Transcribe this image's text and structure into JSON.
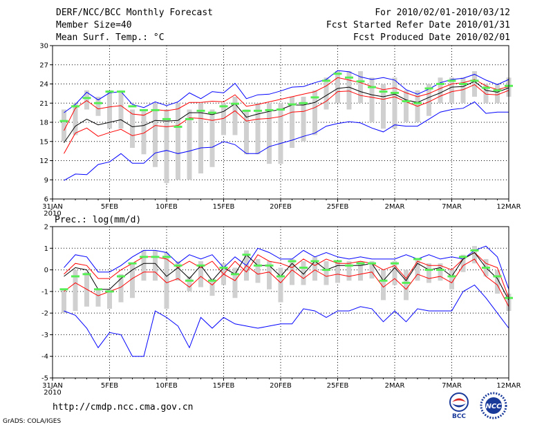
{
  "header": {
    "title": "DERF/NCC/BCC Monthly Forecast",
    "member_size": "Member Size=40",
    "variable": "Mean Surf. Temp.: °C",
    "period": "For 2010/02/01-2010/03/12",
    "started": "Fcst Started Refer Date 2010/01/31",
    "produced": "Fcst Produced Date 2010/02/01"
  },
  "footer": {
    "url": "http://cmdp.ncc.cma.gov.cn",
    "grads": "GrADS: COLA/IGES",
    "logo_bcc": "BCC",
    "logo_ncc": "NCC"
  },
  "colors": {
    "envelope": "#0000ff",
    "spread": "#ff0000",
    "mean": "#000000",
    "obs": "#55ee55",
    "bar": "#d0d0d0"
  },
  "chart_data": [
    {
      "type": "line",
      "title": "Mean Surf. Temp.: °C",
      "ylim": [
        6,
        30
      ],
      "yticks": [
        6,
        9,
        12,
        15,
        18,
        21,
        24,
        27,
        30
      ],
      "xticks": [
        {
          "day": 0,
          "label": "31JAN"
        },
        {
          "day": 5,
          "label": "5FEB"
        },
        {
          "day": 10,
          "label": "10FEB"
        },
        {
          "day": 15,
          "label": "15FEB"
        },
        {
          "day": 20,
          "label": "20FEB"
        },
        {
          "day": 25,
          "label": "25FEB"
        },
        {
          "day": 30,
          "label": "2MAR"
        },
        {
          "day": 35,
          "label": "7MAR"
        },
        {
          "day": 40,
          "label": "12MAR"
        }
      ],
      "year_label": "2010",
      "x": [
        1,
        2,
        3,
        4,
        5,
        6,
        7,
        8,
        9,
        10,
        11,
        12,
        13,
        14,
        15,
        16,
        17,
        18,
        19,
        20,
        21,
        22,
        23,
        24,
        25,
        26,
        27,
        28,
        29,
        30,
        31,
        32,
        33,
        34,
        35,
        36,
        37,
        38,
        39,
        40
      ],
      "series": [
        {
          "name": "max",
          "values": [
            19.5,
            20.8,
            22.7,
            21.5,
            22.6,
            22.8,
            20.8,
            20.3,
            21.2,
            20.6,
            21.2,
            22.6,
            21.7,
            22.8,
            22.6,
            24.1,
            21.7,
            22.3,
            22.4,
            22.9,
            23.5,
            23.6,
            24.2,
            24.7,
            26.1,
            25.9,
            25.1,
            24.7,
            25.0,
            24.6,
            23.1,
            22.4,
            23.2,
            24.2,
            24.7,
            24.9,
            25.5,
            24.6,
            23.9,
            24.7
          ]
        },
        {
          "name": "mean_plus",
          "values": [
            16.7,
            20.2,
            21.4,
            20.1,
            20.4,
            20.6,
            19.3,
            19.1,
            20.0,
            19.8,
            20.1,
            21.1,
            21.1,
            21.3,
            21.2,
            22.3,
            20.5,
            20.8,
            21.2,
            21.6,
            22.0,
            22.4,
            22.8,
            23.7,
            25.0,
            24.6,
            24.2,
            23.6,
            23.1,
            23.4,
            22.6,
            22.0,
            22.5,
            23.3,
            24.0,
            24.2,
            24.7,
            23.7,
            23.1,
            23.6
          ]
        },
        {
          "name": "mean",
          "values": [
            14.8,
            17.4,
            18.5,
            17.6,
            18.0,
            18.4,
            17.3,
            17.5,
            18.3,
            18.2,
            18.3,
            19.5,
            19.5,
            19.2,
            19.7,
            20.9,
            18.8,
            19.3,
            19.7,
            20.0,
            20.7,
            20.7,
            21.1,
            22.2,
            23.3,
            23.5,
            22.8,
            22.3,
            22.0,
            22.4,
            21.5,
            21.1,
            21.9,
            22.6,
            23.5,
            23.6,
            24.4,
            23.0,
            22.7,
            23.4
          ]
        },
        {
          "name": "mean_minus",
          "values": [
            13.1,
            16.3,
            17.1,
            15.8,
            16.4,
            16.9,
            15.9,
            16.3,
            17.5,
            17.3,
            17.5,
            18.7,
            18.6,
            18.3,
            18.6,
            19.8,
            18.2,
            18.5,
            18.6,
            18.9,
            19.6,
            19.7,
            20.3,
            21.3,
            22.8,
            22.9,
            22.2,
            21.9,
            21.6,
            22.0,
            21.2,
            20.5,
            21.2,
            22.1,
            22.8,
            23.1,
            23.9,
            22.4,
            22.3,
            23.0
          ]
        },
        {
          "name": "min",
          "values": [
            8.9,
            9.9,
            9.8,
            11.4,
            11.8,
            13.1,
            11.6,
            11.6,
            13.2,
            13.6,
            13.1,
            13.5,
            14.0,
            14.1,
            15.0,
            14.5,
            13.1,
            13.1,
            14.2,
            14.7,
            15.2,
            15.8,
            16.3,
            17.4,
            17.8,
            18.1,
            17.9,
            17.1,
            16.5,
            17.6,
            17.4,
            17.4,
            18.5,
            19.6,
            20.0,
            20.2,
            21.2,
            19.4,
            19.6,
            19.6
          ]
        },
        {
          "name": "obs_green",
          "values": [
            18.2,
            20.5,
            21.8,
            21.0,
            22.8,
            22.8,
            20.5,
            19.9,
            19.9,
            18.5,
            17.3,
            18.5,
            19.8,
            19.5,
            20.5,
            20.9,
            19.8,
            19.8,
            19.9,
            20.0,
            20.8,
            21.0,
            21.9,
            24.5,
            25.6,
            25.0,
            24.4,
            23.5,
            22.8,
            22.6,
            21.3,
            21.0,
            23.3,
            24.0,
            24.5,
            24.0,
            24.5,
            23.4,
            23.0,
            23.7
          ]
        }
      ],
      "bars": [
        [
          15,
          20
        ],
        [
          16,
          21
        ],
        [
          20,
          23
        ],
        [
          19,
          22
        ],
        [
          17,
          23
        ],
        [
          17,
          23
        ],
        [
          14,
          20
        ],
        [
          13,
          20
        ],
        [
          11,
          21
        ],
        [
          8.5,
          20
        ],
        [
          9,
          21
        ],
        [
          9,
          20
        ],
        [
          10,
          21
        ],
        [
          11,
          20
        ],
        [
          16,
          21
        ],
        [
          16,
          22
        ],
        [
          13,
          20
        ],
        [
          13,
          21
        ],
        [
          11.5,
          21
        ],
        [
          11.5,
          21
        ],
        [
          14,
          22
        ],
        [
          15,
          22
        ],
        [
          16,
          23
        ],
        [
          20,
          25
        ],
        [
          21,
          26
        ],
        [
          20,
          26
        ],
        [
          21,
          26
        ],
        [
          18,
          25
        ],
        [
          17,
          24
        ],
        [
          17,
          25
        ],
        [
          18,
          23
        ],
        [
          18,
          23
        ],
        [
          19,
          24
        ],
        [
          21,
          25
        ],
        [
          21,
          25
        ],
        [
          21,
          25
        ],
        [
          22,
          26
        ],
        [
          21,
          24
        ],
        [
          21,
          24
        ],
        [
          22,
          25
        ]
      ]
    },
    {
      "type": "line",
      "title": "Prec.: log(mm/d)",
      "ylim": [
        -5,
        2
      ],
      "yticks": [
        -5,
        -4,
        -3,
        -2,
        -1,
        0,
        1,
        2
      ],
      "xticks": [
        {
          "day": 0,
          "label": "31JAN"
        },
        {
          "day": 5,
          "label": "5FEB"
        },
        {
          "day": 10,
          "label": "10FEB"
        },
        {
          "day": 15,
          "label": "15FEB"
        },
        {
          "day": 20,
          "label": "20FEB"
        },
        {
          "day": 25,
          "label": "25FEB"
        },
        {
          "day": 30,
          "label": "2MAR"
        },
        {
          "day": 35,
          "label": "7MAR"
        },
        {
          "day": 40,
          "label": "12MAR"
        }
      ],
      "year_label": "2010",
      "x": [
        1,
        2,
        3,
        4,
        5,
        6,
        7,
        8,
        9,
        10,
        11,
        12,
        13,
        14,
        15,
        16,
        17,
        18,
        19,
        20,
        21,
        22,
        23,
        24,
        25,
        26,
        27,
        28,
        29,
        30,
        31,
        32,
        33,
        34,
        35,
        36,
        37,
        38,
        39,
        40
      ],
      "series": [
        {
          "name": "max",
          "values": [
            0.1,
            0.7,
            0.6,
            -0.1,
            -0.1,
            0.2,
            0.6,
            0.9,
            0.9,
            0.8,
            0.3,
            0.7,
            0.5,
            0.7,
            0.1,
            0.6,
            0.2,
            1.0,
            0.8,
            0.5,
            0.5,
            0.9,
            0.6,
            0.8,
            0.6,
            0.5,
            0.6,
            0.5,
            0.5,
            0.5,
            0.7,
            0.5,
            0.7,
            0.5,
            0.6,
            0.5,
            0.9,
            1.1,
            0.6,
            -0.9
          ]
        },
        {
          "name": "mean_plus",
          "values": [
            -0.2,
            0.3,
            0.2,
            -0.4,
            -0.4,
            0.0,
            0.3,
            0.6,
            0.6,
            0.5,
            0.1,
            0.4,
            0.1,
            0.4,
            -0.2,
            0.4,
            -0.1,
            0.7,
            0.4,
            0.3,
            0.1,
            0.5,
            0.2,
            0.5,
            0.3,
            0.3,
            0.4,
            0.3,
            0.0,
            0.2,
            -0.4,
            0.4,
            0.2,
            0.2,
            0.0,
            0.5,
            0.8,
            0.3,
            0.1,
            -1.3
          ]
        },
        {
          "name": "mean",
          "values": [
            -0.3,
            0.1,
            0.0,
            -0.9,
            -0.9,
            -0.4,
            0.0,
            0.3,
            0.3,
            -0.3,
            0.1,
            -0.4,
            0.2,
            -0.5,
            0.1,
            -0.2,
            0.7,
            0.2,
            0.2,
            -0.3,
            0.3,
            -0.2,
            0.4,
            0.0,
            0.2,
            0.2,
            0.2,
            0.3,
            -0.5,
            0.1,
            -0.5,
            0.3,
            0.0,
            0.1,
            -0.3,
            0.5,
            0.8,
            0.1,
            -0.4,
            -1.4
          ]
        },
        {
          "name": "mean_minus",
          "values": [
            -1.0,
            -0.6,
            -0.9,
            -1.2,
            -1.0,
            -0.8,
            -0.4,
            -0.1,
            -0.1,
            -0.6,
            -0.4,
            -0.8,
            -0.3,
            -0.7,
            -0.2,
            -0.5,
            0.2,
            -0.2,
            -0.1,
            -0.6,
            0.0,
            -0.4,
            0.0,
            -0.3,
            -0.2,
            -0.3,
            -0.2,
            -0.1,
            -0.8,
            -0.4,
            -0.9,
            -0.2,
            -0.4,
            -0.3,
            -0.6,
            0.2,
            0.5,
            -0.3,
            -0.7,
            -1.7
          ]
        },
        {
          "name": "min",
          "values": [
            -1.9,
            -2.1,
            -2.7,
            -3.6,
            -2.9,
            -3.0,
            -4.0,
            -4.0,
            -1.9,
            -2.2,
            -2.6,
            -3.6,
            -2.2,
            -2.7,
            -2.2,
            -2.5,
            -2.6,
            -2.7,
            -2.6,
            -2.5,
            -2.5,
            -1.8,
            -1.9,
            -2.2,
            -1.9,
            -1.9,
            -1.7,
            -1.8,
            -2.4,
            -1.9,
            -2.4,
            -1.8,
            -1.9,
            -1.9,
            -1.9,
            -1.0,
            -0.7,
            -1.3,
            -2.0,
            -2.7
          ]
        },
        {
          "name": "obs_green",
          "values": [
            -0.9,
            -0.3,
            -0.2,
            -0.9,
            -1.0,
            -0.3,
            0.3,
            0.6,
            0.6,
            0.6,
            0.2,
            -0.5,
            0.2,
            -0.5,
            0.1,
            -0.2,
            0.7,
            0.2,
            0.2,
            -0.3,
            0.4,
            0.1,
            0.4,
            0.0,
            0.4,
            0.2,
            0.3,
            0.3,
            -0.5,
            0.3,
            -0.6,
            0.5,
            0.0,
            0.0,
            -0.3,
            0.6,
            0.9,
            0.1,
            -0.3,
            -1.3
          ]
        }
      ],
      "bars": [
        [
          -2.0,
          -0.9
        ],
        [
          -1.9,
          0.0
        ],
        [
          -1.7,
          -0.1
        ],
        [
          -1.7,
          -0.9
        ],
        [
          -1.8,
          -0.9
        ],
        [
          -1.5,
          -0.2
        ],
        [
          -1.3,
          0.3
        ],
        [
          -0.5,
          0.9
        ],
        [
          -0.5,
          0.9
        ],
        [
          -1.8,
          0.8
        ],
        [
          -0.5,
          0.4
        ],
        [
          -1.0,
          -0.3
        ],
        [
          -0.8,
          0.4
        ],
        [
          -1.2,
          -0.4
        ],
        [
          -0.7,
          0.3
        ],
        [
          -1.3,
          0.1
        ],
        [
          -0.5,
          0.9
        ],
        [
          -0.6,
          0.5
        ],
        [
          -0.9,
          0.4
        ],
        [
          -1.5,
          0.1
        ],
        [
          -0.7,
          0.5
        ],
        [
          -0.7,
          0.4
        ],
        [
          -0.5,
          0.6
        ],
        [
          -0.7,
          0.4
        ],
        [
          -0.6,
          0.4
        ],
        [
          -0.5,
          0.4
        ],
        [
          -0.5,
          0.4
        ],
        [
          -0.4,
          0.4
        ],
        [
          -1.4,
          0.0
        ],
        [
          -0.7,
          0.4
        ],
        [
          -1.4,
          0.0
        ],
        [
          -0.5,
          0.5
        ],
        [
          -0.6,
          0.3
        ],
        [
          -0.5,
          0.3
        ],
        [
          -0.9,
          0.0
        ],
        [
          -0.1,
          0.7
        ],
        [
          0.3,
          1.1
        ],
        [
          -0.3,
          0.5
        ],
        [
          -1.1,
          0.0
        ],
        [
          -1.9,
          -1.1
        ]
      ]
    }
  ]
}
